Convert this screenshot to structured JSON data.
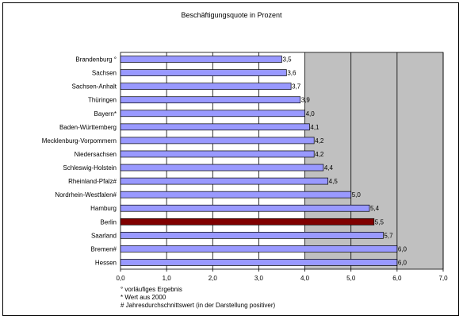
{
  "chart_data": {
    "type": "bar",
    "orientation": "horizontal",
    "title": "Beschäftigungsquote in Prozent",
    "xlabel": "",
    "ylabel": "",
    "xlim": [
      0,
      7
    ],
    "x_ticks": [
      "0,0",
      "1,0",
      "2,0",
      "3,0",
      "4,0",
      "5,0",
      "6,0",
      "7,0"
    ],
    "grid": true,
    "legend": "none",
    "categories": [
      "Brandenburg °",
      "Sachsen",
      "Sachsen-Anhalt",
      "Thüringen",
      "Bayern*",
      "Baden-Württemberg",
      "Mecklenburg-Vorpommern",
      "Niedersachsen",
      "Schleswig-Holstein",
      "Rheinland-Pfalz#",
      "Nordrhein-Westfalen#",
      "Hamburg",
      "Berlin",
      "Saarland",
      "Bremen#",
      "Hessen"
    ],
    "values": [
      3.5,
      3.6,
      3.7,
      3.9,
      4.0,
      4.1,
      4.2,
      4.2,
      4.4,
      4.5,
      5.0,
      5.4,
      5.5,
      5.7,
      6.0,
      6.0
    ],
    "value_labels": [
      "3,5",
      "3,6",
      "3,7",
      "3,9",
      "4,0",
      "4,1",
      "4,2",
      "4,2",
      "4,4",
      "4,5",
      "5,0",
      "5,4",
      "5,5",
      "5,7",
      "6,0",
      "6,0"
    ],
    "highlight_category": "Berlin",
    "colors": {
      "bar": "#9999ff",
      "highlight": "#800000",
      "plot_bg": "#c0c0c0",
      "plot_bg_white_until": 4.0
    }
  },
  "notes": [
    "° vorläufiges Ergebnis",
    "* Wert aus 2000",
    "# Jahresdurchschnittswert (in der Darstellung positiver)"
  ]
}
